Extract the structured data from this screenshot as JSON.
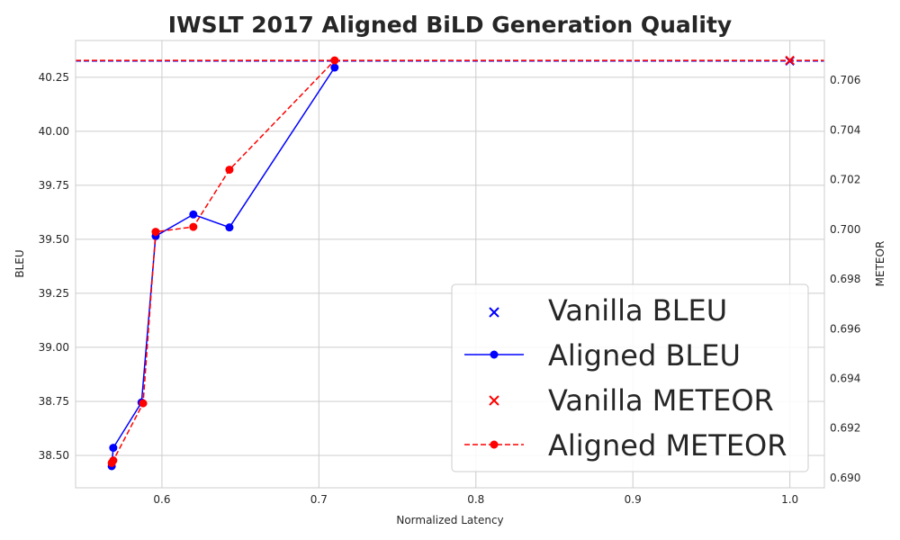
{
  "chart_data": {
    "type": "line",
    "title": "IWSLT 2017 Aligned BiLD Generation Quality",
    "xlabel": "Normalized Latency",
    "ylabel_left": "BLEU",
    "ylabel_right": "METEOR",
    "xlim": [
      0.545,
      1.022
    ],
    "ylim_left": [
      38.35,
      40.42
    ],
    "ylim_right": [
      0.6896,
      0.7076
    ],
    "x_ticks": [
      "0.6",
      "0.7",
      "0.8",
      "0.9",
      "1.0"
    ],
    "y_ticks_left": [
      "38.50",
      "38.75",
      "39.00",
      "39.25",
      "39.50",
      "39.75",
      "40.00",
      "40.25"
    ],
    "y_ticks_right": [
      "0.690",
      "0.692",
      "0.694",
      "0.696",
      "0.698",
      "0.700",
      "0.702",
      "0.704",
      "0.706"
    ],
    "grid": true,
    "legend_position": "bottom-right",
    "series": [
      {
        "name": "Vanilla BLEU",
        "axis": "left",
        "style": "marker-x",
        "color": "#0000ff",
        "x": [
          1.0
        ],
        "y": [
          40.325
        ]
      },
      {
        "name": "Aligned BLEU",
        "axis": "left",
        "style": "solid-circle",
        "color": "#0000ff",
        "x": [
          0.568,
          0.569,
          0.587,
          0.596,
          0.62,
          0.643,
          0.71
        ],
        "y": [
          38.45,
          38.535,
          38.745,
          39.515,
          39.615,
          39.555,
          40.295
        ]
      },
      {
        "name": "Vanilla METEOR",
        "axis": "right",
        "style": "marker-x",
        "color": "#ff0000",
        "x": [
          1.0
        ],
        "y": [
          0.7068
        ]
      },
      {
        "name": "Aligned METEOR",
        "axis": "right",
        "style": "dashed-circle",
        "color": "#ff0000",
        "x": [
          0.568,
          0.569,
          0.588,
          0.596,
          0.62,
          0.643,
          0.71
        ],
        "y": [
          0.6906,
          0.6907,
          0.693,
          0.6999,
          0.7001,
          0.7024,
          0.7068
        ]
      }
    ],
    "reference_lines": [
      {
        "axis": "left",
        "y": 40.325,
        "color": "#0000ff",
        "style": "dashed"
      },
      {
        "axis": "right",
        "y": 0.7068,
        "color": "#ff0000",
        "style": "dashed"
      }
    ]
  }
}
